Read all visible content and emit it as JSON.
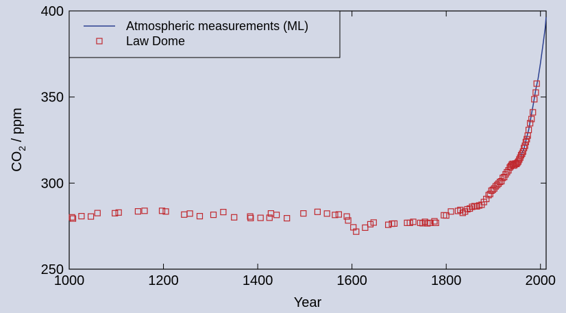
{
  "chart_data": {
    "type": "scatter",
    "xlabel": "Year",
    "ylabel_main": "CO",
    "ylabel_sub": "2",
    "ylabel_rest": " / ppm",
    "xlim": [
      1000,
      2012
    ],
    "ylim": [
      250,
      400
    ],
    "xticks": [
      1000,
      1200,
      1400,
      1600,
      1800,
      2000
    ],
    "yticks": [
      250,
      300,
      350,
      400
    ],
    "grid": false,
    "legend_position": "top-left",
    "series": [
      {
        "name": "Atmospheric measurements (ML)",
        "kind": "line",
        "color": "#2b3f8f",
        "x": [
          1958,
          1960,
          1965,
          1970,
          1975,
          1980,
          1985,
          1990,
          1995,
          2000,
          2005,
          2010,
          2012
        ],
        "y": [
          315.0,
          316.9,
          320.0,
          325.7,
          331.1,
          338.7,
          346.1,
          354.4,
          360.8,
          369.6,
          379.8,
          389.9,
          396.5
        ]
      },
      {
        "name": "Law Dome",
        "kind": "markers",
        "color": "#c0282e",
        "x": [
          1006,
          1008,
          1026,
          1046,
          1060,
          1097,
          1105,
          1146,
          1160,
          1197,
          1205,
          1244,
          1256,
          1277,
          1306,
          1327,
          1350,
          1384,
          1385,
          1406,
          1425,
          1428,
          1440,
          1462,
          1497,
          1527,
          1547,
          1564,
          1572,
          1589,
          1592,
          1603,
          1609,
          1628,
          1639,
          1646,
          1677,
          1685,
          1690,
          1717,
          1723,
          1730,
          1745,
          1750,
          1755,
          1760,
          1765,
          1775,
          1778,
          1795,
          1800,
          1810,
          1825,
          1830,
          1835,
          1840,
          1845,
          1850,
          1855,
          1860,
          1865,
          1870,
          1875,
          1880,
          1885,
          1890,
          1893,
          1896,
          1899,
          1902,
          1905,
          1908,
          1911,
          1914,
          1917,
          1920,
          1923,
          1926,
          1929,
          1932,
          1935,
          1937,
          1939,
          1941,
          1943,
          1945,
          1947,
          1949,
          1951,
          1953,
          1955,
          1957,
          1959,
          1961,
          1963,
          1965,
          1967,
          1969,
          1971,
          1973,
          1975,
          1978,
          1981,
          1984,
          1987,
          1990,
          1992
        ],
        "y": [
          280.1,
          279.4,
          280.8,
          280.6,
          282.6,
          282.5,
          282.9,
          283.6,
          283.9,
          283.9,
          283.5,
          281.7,
          282.3,
          280.8,
          281.6,
          283.2,
          280.1,
          280.6,
          279.7,
          279.8,
          279.9,
          282.4,
          281.5,
          279.6,
          282.4,
          283.3,
          282.3,
          281.5,
          281.8,
          280.6,
          278.3,
          274.3,
          271.8,
          274.1,
          276.1,
          277.1,
          275.8,
          276.4,
          276.5,
          276.9,
          276.9,
          277.5,
          276.9,
          276.7,
          277.5,
          276.6,
          276.9,
          277.8,
          276.9,
          281.3,
          281.2,
          283.5,
          283.8,
          284.4,
          282.7,
          283.5,
          284.8,
          285.2,
          286.2,
          286.6,
          286.5,
          287.0,
          287.4,
          289.0,
          290.8,
          293.0,
          293.7,
          295.6,
          296.1,
          296.9,
          298.1,
          298.9,
          299.7,
          300.7,
          301.1,
          303.0,
          303.5,
          305.1,
          306.3,
          307.4,
          309.1,
          309.8,
          310.7,
          311.2,
          310.2,
          310.5,
          311.4,
          311.1,
          311.8,
          312.5,
          313.7,
          314.8,
          316.2,
          317.1,
          318.3,
          320.4,
          321.7,
          323.9,
          325.5,
          327.6,
          330.9,
          334.8,
          337.2,
          341.1,
          348.7,
          352.6,
          357.8
        ]
      }
    ]
  }
}
